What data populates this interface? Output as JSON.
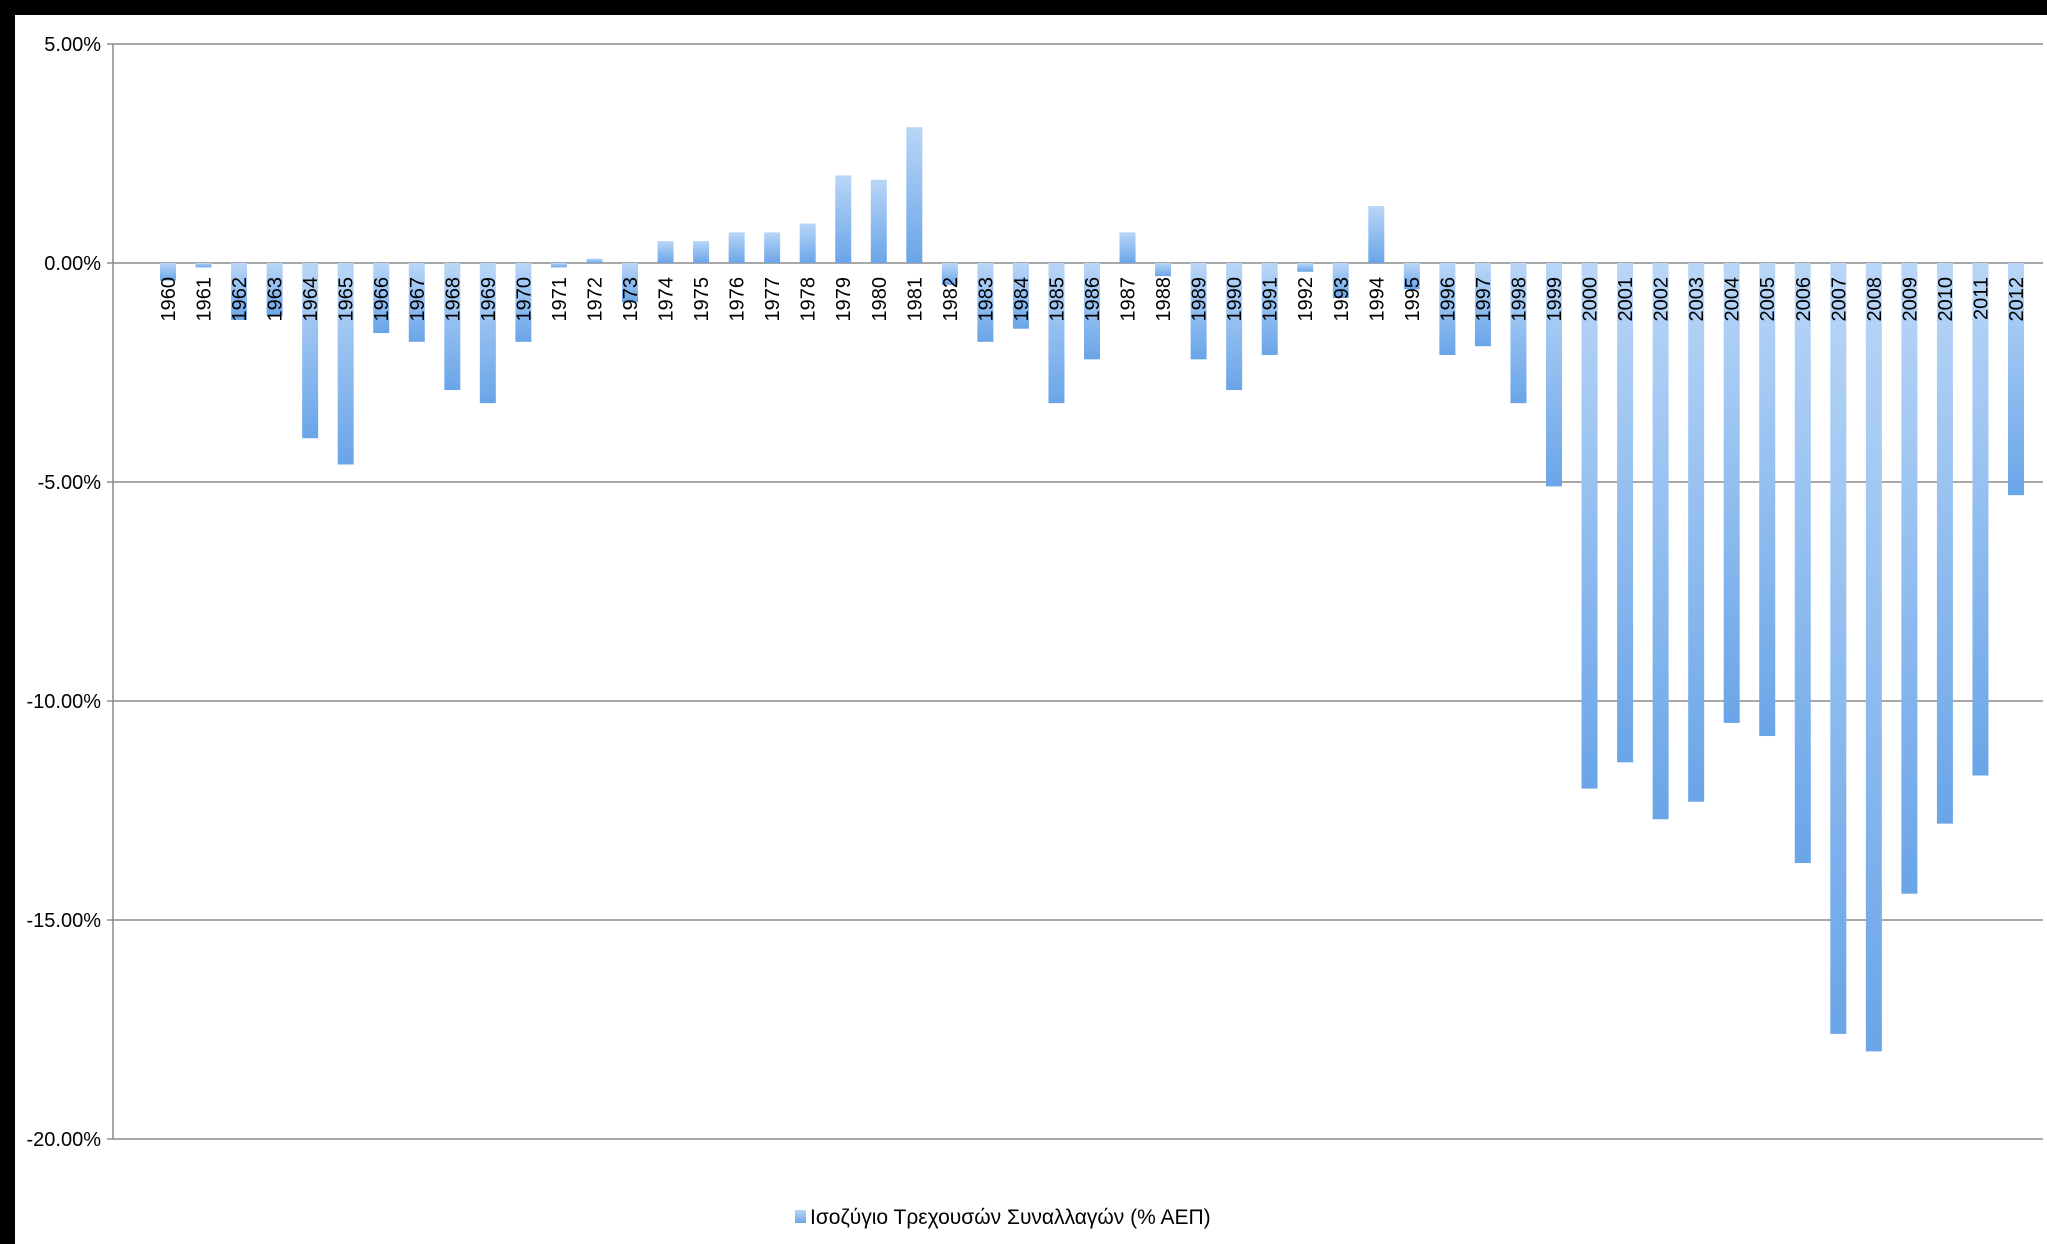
{
  "chart_data": {
    "type": "bar",
    "title": "",
    "xlabel": "",
    "ylabel": "",
    "ylim": [
      -20,
      5
    ],
    "yticks": [
      5,
      0,
      -5,
      -10,
      -15,
      -20
    ],
    "ytick_labels": [
      "5.00%",
      "0.00%",
      "-5.00%",
      "-10.00%",
      "-15.00%",
      "-20.00%"
    ],
    "grid": "horizontal",
    "legend_position": "bottom",
    "bar_color": "#6aa5e8",
    "bar_color_light": "#b9d6f7",
    "categories": [
      "1960",
      "1961",
      "1962",
      "1963",
      "1964",
      "1965",
      "1966",
      "1967",
      "1968",
      "1969",
      "1970",
      "1971",
      "1972",
      "1973",
      "1974",
      "1975",
      "1976",
      "1977",
      "1978",
      "1979",
      "1980",
      "1981",
      "1982",
      "1983",
      "1984",
      "1985",
      "1986",
      "1987",
      "1988",
      "1989",
      "1990",
      "1991",
      "1992",
      "1993",
      "1994",
      "1995",
      "1996",
      "1997",
      "1998",
      "1999",
      "2000",
      "2001",
      "2002",
      "2003",
      "2004",
      "2005",
      "2006",
      "2007",
      "2008",
      "2009",
      "2010",
      "2011",
      "2012"
    ],
    "series": [
      {
        "name": "Ισοζύγιο Τρεχουσών Συναλλαγών (% ΑΕΠ)",
        "values": [
          -0.4,
          -0.1,
          -1.3,
          -1.2,
          -4.0,
          -4.6,
          -1.6,
          -1.8,
          -2.9,
          -3.2,
          -1.8,
          -0.1,
          0.1,
          -0.9,
          0.5,
          0.5,
          0.7,
          0.7,
          0.9,
          2.0,
          1.9,
          3.1,
          -0.5,
          -1.8,
          -1.5,
          -3.2,
          -2.2,
          0.7,
          -0.3,
          -2.2,
          -2.9,
          -2.1,
          -0.2,
          -0.8,
          1.3,
          -0.6,
          -2.1,
          -1.9,
          -3.2,
          -5.1,
          -12.0,
          -11.4,
          -12.7,
          -12.3,
          -10.5,
          -10.8,
          -13.7,
          -17.6,
          -18.0,
          -14.4,
          -12.8,
          -11.7,
          -5.3
        ]
      }
    ]
  }
}
